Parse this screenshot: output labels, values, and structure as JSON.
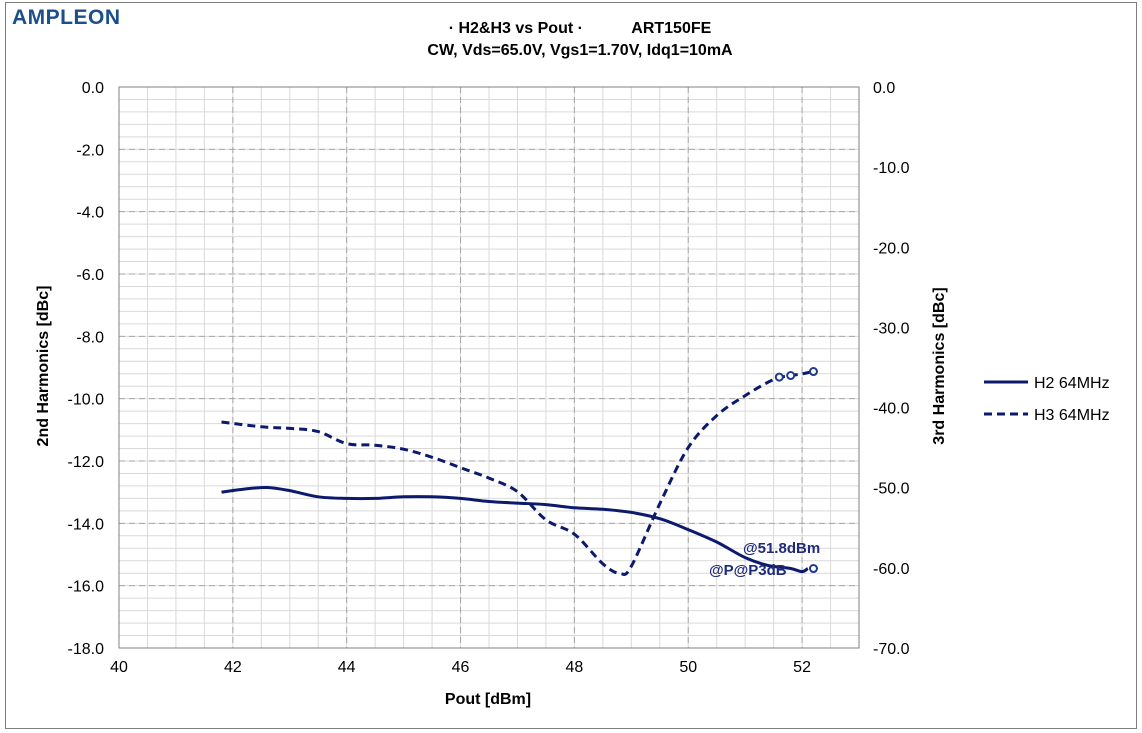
{
  "brand": {
    "logo_text": "AMPLEON"
  },
  "chart_data": {
    "type": "line",
    "title_line1_left": "· H2&H3  vs Pout ·",
    "title_line1_right": "ART150FE",
    "title_line2": "CW, Vds=65.0V, Vgs1=1.70V, Idq1=10mA",
    "xlabel": "Pout [dBm]",
    "ylabel_left": "2nd Harmonics [dBc]",
    "ylabel_right": "3rd Harmonics [dBc]",
    "xlim": [
      40,
      53
    ],
    "xticks": [
      40,
      42,
      44,
      46,
      48,
      50,
      52
    ],
    "ylim_left": [
      -18,
      0
    ],
    "yticks_left": [
      "0.0",
      "-2.0",
      "-4.0",
      "-6.0",
      "-8.0",
      "-10.0",
      "-12.0",
      "-14.0",
      "-16.0",
      "-18.0"
    ],
    "ylim_right": [
      -70,
      0
    ],
    "yticks_right": [
      "0.0",
      "-10.0",
      "-20.0",
      "-30.0",
      "-40.0",
      "-50.0",
      "-60.0",
      "-70.0"
    ],
    "grid": true,
    "legend_position": "right",
    "series": [
      {
        "name": "H2 64MHz",
        "axis": "left",
        "style": "solid",
        "color": "#0c1a6e",
        "x": [
          41.8,
          42.2,
          42.6,
          43.0,
          43.5,
          44.0,
          44.5,
          45.0,
          45.5,
          46.0,
          46.5,
          47.0,
          47.5,
          48.0,
          48.5,
          49.0,
          49.5,
          50.0,
          50.5,
          51.0,
          51.4,
          51.8,
          52.0,
          52.1
        ],
        "y": [
          -13.0,
          -12.9,
          -12.85,
          -12.95,
          -13.15,
          -13.2,
          -13.2,
          -13.15,
          -13.15,
          -13.2,
          -13.3,
          -13.35,
          -13.4,
          -13.5,
          -13.55,
          -13.65,
          -13.85,
          -14.2,
          -14.6,
          -15.1,
          -15.35,
          -15.45,
          -15.55,
          -15.45
        ]
      },
      {
        "name": "H3 64MHz",
        "axis": "right",
        "style": "dashed",
        "color": "#0c1a6e",
        "x": [
          41.8,
          42.5,
          43.0,
          43.5,
          44.0,
          44.5,
          45.0,
          45.5,
          46.0,
          46.5,
          47.0,
          47.5,
          48.0,
          48.5,
          48.8,
          49.0,
          49.5,
          50.0,
          50.5,
          51.0,
          51.5,
          51.8,
          52.0,
          52.2
        ],
        "y": [
          -41.8,
          -42.4,
          -42.6,
          -43.0,
          -44.5,
          -44.7,
          -45.2,
          -46.2,
          -47.5,
          -48.8,
          -50.5,
          -54.0,
          -55.8,
          -59.5,
          -60.7,
          -59.8,
          -52.0,
          -45.0,
          -41.0,
          -38.5,
          -36.5,
          -36.0,
          -35.8,
          -35.5
        ]
      }
    ],
    "markers": [
      {
        "x": 52.2,
        "y": -15.45,
        "axis": "left"
      },
      {
        "x": 51.6,
        "y": -36.2,
        "axis": "right"
      },
      {
        "x": 51.8,
        "y": -36.0,
        "axis": "right"
      },
      {
        "x": 52.2,
        "y": -35.5,
        "axis": "right"
      }
    ],
    "annotations": [
      {
        "text": "@51.8dBm"
      },
      {
        "text": "@P@P3dB"
      }
    ]
  }
}
